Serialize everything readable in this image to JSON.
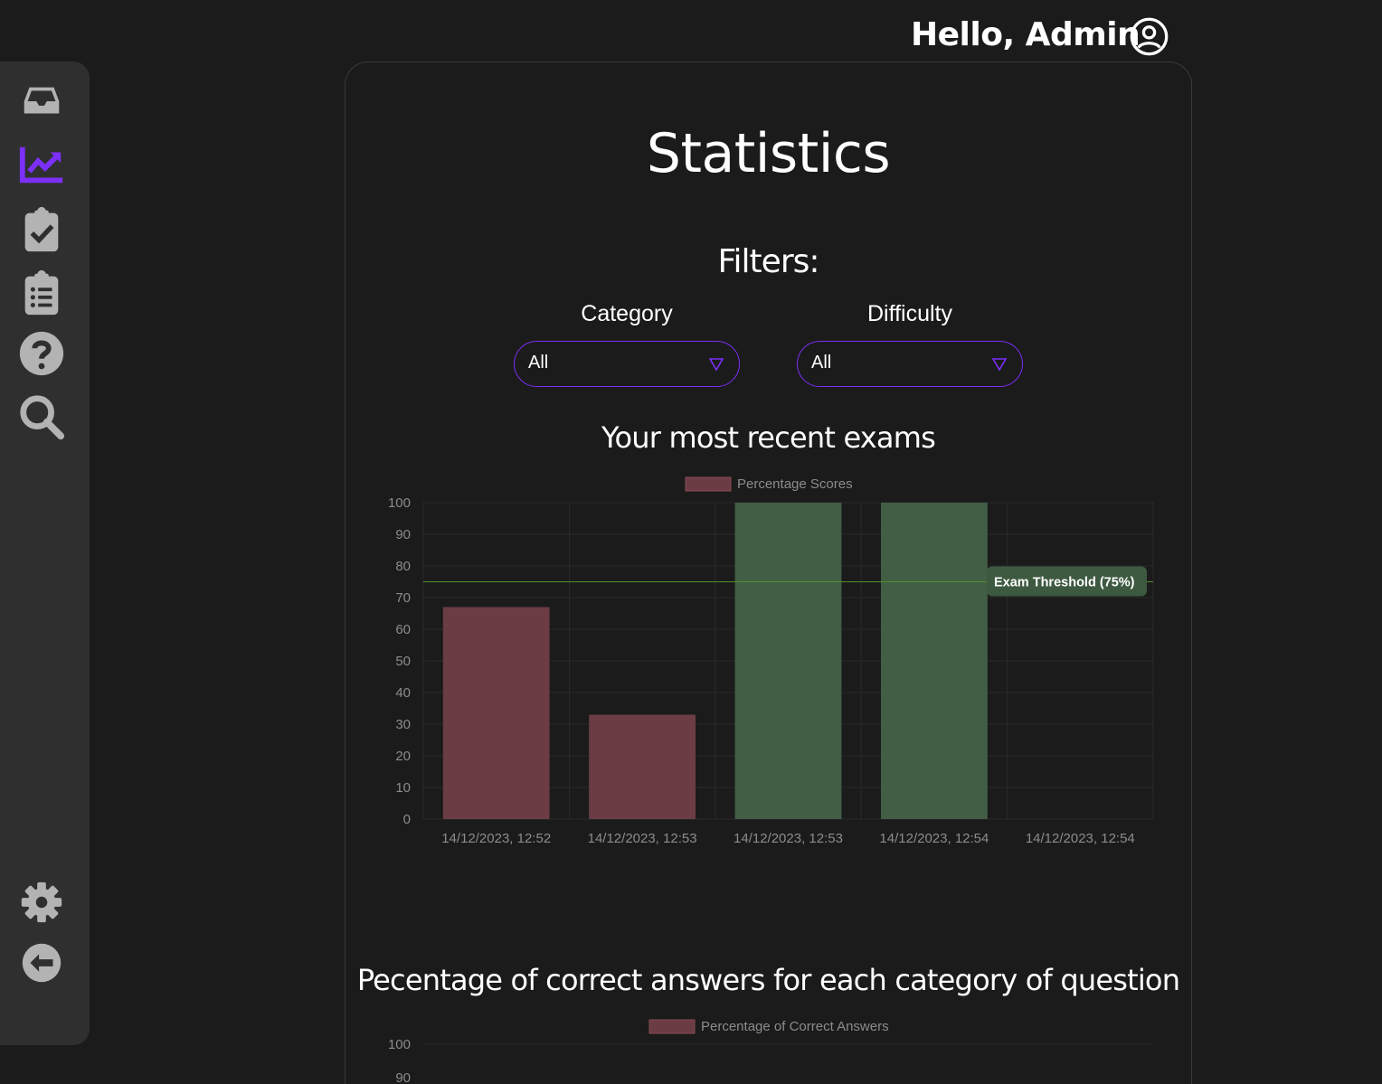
{
  "header": {
    "greeting": "Hello, Admin"
  },
  "sidebar": {
    "items": [
      {
        "name": "inbox",
        "active": false
      },
      {
        "name": "statistics",
        "active": true
      },
      {
        "name": "exams",
        "active": false
      },
      {
        "name": "questions",
        "active": false
      },
      {
        "name": "help",
        "active": false
      },
      {
        "name": "search",
        "active": false
      }
    ],
    "bottom": [
      {
        "name": "settings"
      },
      {
        "name": "logout"
      }
    ],
    "accent_color": "#7b2ff7",
    "icon_color": "#b3b3b3"
  },
  "page": {
    "title": "Statistics",
    "filters_title": "Filters:",
    "filters": {
      "category": {
        "label": "Category",
        "value": "All"
      },
      "difficulty": {
        "label": "Difficulty",
        "value": "All"
      }
    },
    "recent_exams_title": "Your most recent exams",
    "category_title": "Pecentage of correct answers for each category of question"
  },
  "chart_data": [
    {
      "type": "bar",
      "legend": "Percentage Scores",
      "categories": [
        "14/12/2023, 12:52",
        "14/12/2023, 12:53",
        "14/12/2023, 12:53",
        "14/12/2023, 12:54",
        "14/12/2023, 12:54"
      ],
      "values": [
        67,
        33,
        100,
        100,
        0
      ],
      "ylim": [
        0,
        100
      ],
      "yticks": [
        "100",
        "90",
        "80",
        "70",
        "60",
        "50",
        "40",
        "30",
        "20",
        "10",
        "0"
      ],
      "threshold": {
        "value": 75,
        "label": "Exam Threshold (75%)"
      },
      "colors": {
        "below": "#6b3c44",
        "above": "#425e45",
        "threshold": "#4f8f2a"
      }
    },
    {
      "type": "bar",
      "legend": "Percentage of Correct Answers",
      "ylim": [
        0,
        100
      ],
      "yticks": [
        "100",
        "90"
      ]
    }
  ]
}
